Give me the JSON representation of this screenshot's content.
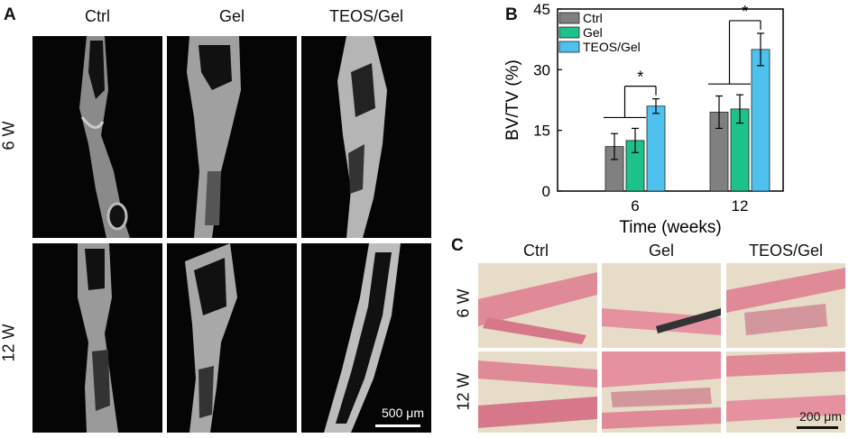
{
  "panel_a": {
    "letter": "A",
    "columns": [
      "Ctrl",
      "Gel",
      "TEOS/Gel"
    ],
    "rows": [
      "6 W",
      "12 W"
    ],
    "scale_bar": "500 μm"
  },
  "panel_b": {
    "letter": "B"
  },
  "panel_c": {
    "letter": "C",
    "columns": [
      "Ctrl",
      "Gel",
      "TEOS/Gel"
    ],
    "rows": [
      "6 W",
      "12 W"
    ],
    "scale_bar": "200 μm"
  },
  "chart_data": {
    "type": "bar",
    "categories": [
      "6",
      "12"
    ],
    "series": [
      {
        "name": "Ctrl",
        "values": [
          11,
          19.5
        ],
        "errors": [
          3.2,
          4.0
        ],
        "color": "#808080"
      },
      {
        "name": "Gel",
        "values": [
          12.5,
          20.3
        ],
        "errors": [
          3.0,
          3.5
        ],
        "color": "#1dc18a"
      },
      {
        "name": "TEOS/Gel",
        "values": [
          21,
          35
        ],
        "errors": [
          1.8,
          4.0
        ],
        "color": "#4ec1ee"
      }
    ],
    "xlabel": "Time (weeks)",
    "ylabel": "BV/TV (%)",
    "ylim": [
      0,
      45
    ],
    "yticks": [
      "0",
      "15",
      "30",
      "45"
    ],
    "legend_position": "top-left",
    "significance": [
      {
        "category": "6",
        "label": "*"
      },
      {
        "category": "12",
        "label": "*"
      }
    ],
    "grid": false
  }
}
